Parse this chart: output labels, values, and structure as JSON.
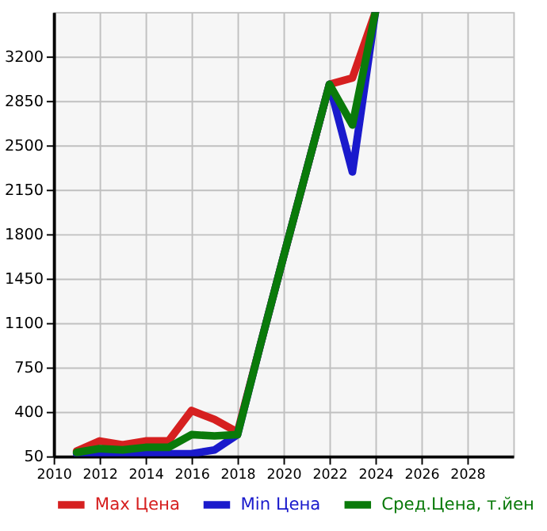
{
  "chart_data": {
    "type": "line",
    "x": [
      2011,
      2012,
      2013,
      2014,
      2015,
      2016,
      2017,
      2018,
      2019,
      2020,
      2021,
      2022,
      2023,
      2024
    ],
    "series": [
      {
        "name": "Max Цена",
        "color": "#d62020",
        "values": [
          90,
          170,
          140,
          170,
          170,
          410,
          340,
          240,
          930,
          1620,
          2300,
          2980,
          3030,
          3550
        ]
      },
      {
        "name": "Min Цена",
        "color": "#1a1acc",
        "values": [
          70,
          60,
          50,
          70,
          70,
          70,
          100,
          220,
          930,
          1620,
          2300,
          2980,
          2290,
          3550
        ]
      },
      {
        "name": "Сред.Цена, т.йен",
        "color": "#0a7a0a",
        "values": [
          80,
          110,
          100,
          120,
          120,
          220,
          210,
          220,
          930,
          1620,
          2300,
          2980,
          2660,
          3550
        ]
      }
    ],
    "xlim": [
      2010,
      2030
    ],
    "xticks": [
      2010,
      2012,
      2014,
      2016,
      2018,
      2020,
      2022,
      2024,
      2026,
      2028
    ],
    "ylim": [
      50,
      3550
    ],
    "yticks": [
      50,
      400,
      750,
      1100,
      1450,
      1800,
      2150,
      2500,
      2850,
      3200
    ],
    "grid": true,
    "legend": "bottom",
    "marker": "none",
    "line_style": "solid"
  }
}
